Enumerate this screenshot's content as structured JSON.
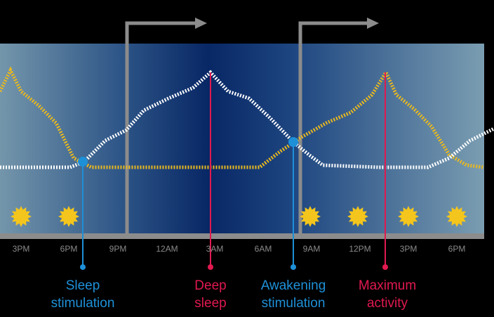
{
  "time_axis": {
    "labels": [
      "3PM",
      "6PM",
      "9PM",
      "12AM",
      "3AM",
      "6AM",
      "9AM",
      "12PM",
      "3PM",
      "6PM"
    ]
  },
  "annotations": [
    {
      "line1": "Sleep",
      "line2": "stimulation"
    },
    {
      "line1": "Deep",
      "line2": "sleep"
    },
    {
      "line1": "Awakening",
      "line2": "stimulation"
    },
    {
      "line1": "Maximum",
      "line2": "activity"
    }
  ]
}
